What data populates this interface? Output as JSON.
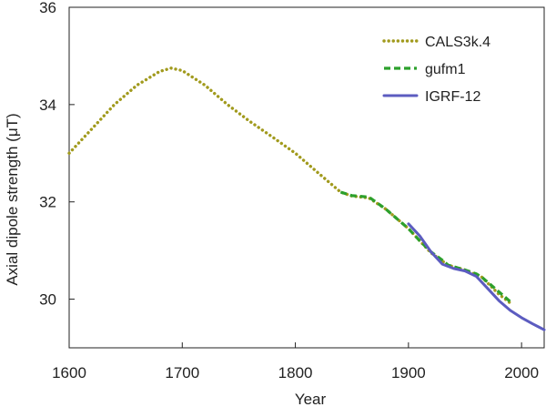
{
  "chart_data": {
    "type": "line",
    "title": "",
    "xlabel": "Year",
    "ylabel": "Axial dipole strength (μT)",
    "xlim": [
      1600,
      2020
    ],
    "ylim": [
      29.0,
      36.0
    ],
    "xticks": [
      1600,
      1700,
      1800,
      1900,
      2000
    ],
    "xtick_labels": [
      "1600",
      "1700",
      "1800",
      "1900",
      "2000"
    ],
    "yticks": [
      30,
      32,
      34,
      36
    ],
    "ytick_labels": [
      "30",
      "32",
      "34",
      "36"
    ],
    "grid": false,
    "legend_position": "top-right",
    "series": [
      {
        "name": "CALS3k.4",
        "style": "dotted",
        "color": "#a19a1d",
        "x": [
          1600,
          1620,
          1640,
          1660,
          1680,
          1690,
          1700,
          1720,
          1740,
          1760,
          1780,
          1800,
          1820,
          1840,
          1850,
          1865,
          1880,
          1900,
          1910,
          1920,
          1935,
          1950,
          1965,
          1980,
          1990
        ],
        "y": [
          33.0,
          33.5,
          34.0,
          34.4,
          34.68,
          34.75,
          34.7,
          34.4,
          34.0,
          33.65,
          33.33,
          33.0,
          32.6,
          32.2,
          32.12,
          32.08,
          31.85,
          31.45,
          31.2,
          30.95,
          30.7,
          30.6,
          30.45,
          30.1,
          29.92
        ]
      },
      {
        "name": "gufm1",
        "style": "dashed",
        "color": "#2ca02c",
        "x": [
          1840,
          1850,
          1865,
          1880,
          1890,
          1900,
          1910,
          1920,
          1930,
          1935,
          1950,
          1960,
          1965,
          1975,
          1985,
          1990
        ],
        "y": [
          32.2,
          32.13,
          32.1,
          31.85,
          31.65,
          31.45,
          31.2,
          30.97,
          30.8,
          30.7,
          30.6,
          30.52,
          30.45,
          30.25,
          30.05,
          29.95
        ]
      },
      {
        "name": "IGRF-12",
        "style": "solid",
        "color": "#5c5cc0",
        "x": [
          1900,
          1910,
          1920,
          1930,
          1940,
          1950,
          1960,
          1970,
          1980,
          1990,
          2000,
          2010,
          2015,
          2020
        ],
        "y": [
          31.55,
          31.3,
          30.97,
          30.72,
          30.63,
          30.58,
          30.47,
          30.22,
          29.97,
          29.77,
          29.62,
          29.49,
          29.43,
          29.37
        ]
      }
    ]
  }
}
